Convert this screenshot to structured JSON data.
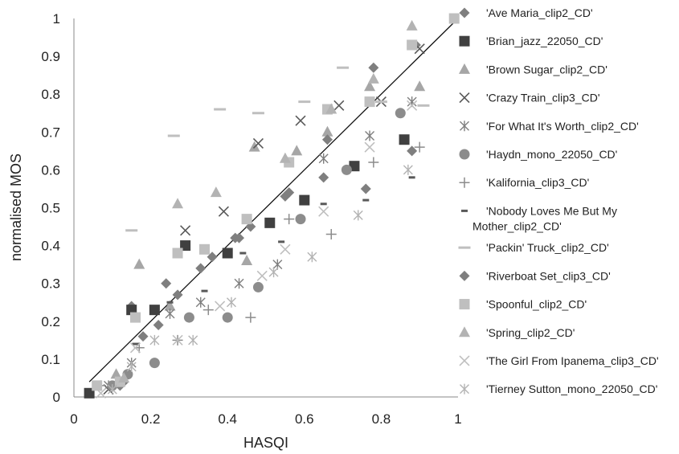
{
  "chart_data": {
    "type": "scatter",
    "xlabel": "HASQI",
    "ylabel": "normalised MOS",
    "xlim": [
      0,
      1
    ],
    "ylim": [
      0,
      1
    ],
    "x_ticks": [
      "0",
      "0.2",
      "0.4",
      "0.6",
      "0.8",
      "1"
    ],
    "y_ticks": [
      "0",
      "0.1",
      "0.2",
      "0.3",
      "0.4",
      "0.5",
      "0.6",
      "0.7",
      "0.8",
      "0.9",
      "1"
    ],
    "grid": false,
    "legend_position": "right",
    "regression_line": {
      "x": [
        0.04,
        1.0
      ],
      "y": [
        0.04,
        1.0
      ]
    },
    "series": [
      {
        "name": "'Ave Maria_clip2_CD'",
        "marker": "diamond",
        "color": "#7f7f7f",
        "points": [
          [
            0.15,
            0.24
          ],
          [
            0.22,
            0.19
          ],
          [
            0.36,
            0.37
          ],
          [
            0.42,
            0.42
          ],
          [
            0.55,
            0.53
          ],
          [
            0.65,
            0.58
          ],
          [
            0.76,
            0.55
          ],
          [
            0.88,
            0.65
          ],
          [
            0.89,
            0.93
          ],
          [
            0.12,
            0.03
          ]
        ]
      },
      {
        "name": "'Brian_jazz_22050_CD'",
        "marker": "square",
        "color": "#404040",
        "points": [
          [
            0.04,
            0.01
          ],
          [
            0.15,
            0.23
          ],
          [
            0.21,
            0.23
          ],
          [
            0.29,
            0.4
          ],
          [
            0.4,
            0.38
          ],
          [
            0.51,
            0.46
          ],
          [
            0.6,
            0.52
          ],
          [
            0.73,
            0.61
          ],
          [
            0.86,
            0.68
          ]
        ]
      },
      {
        "name": "'Brown Sugar_clip2_CD'",
        "marker": "triangle",
        "color": "#a6a6a6",
        "points": [
          [
            0.11,
            0.06
          ],
          [
            0.17,
            0.35
          ],
          [
            0.25,
            0.24
          ],
          [
            0.45,
            0.36
          ],
          [
            0.47,
            0.66
          ],
          [
            0.58,
            0.65
          ],
          [
            0.66,
            0.7
          ],
          [
            0.77,
            0.82
          ],
          [
            0.9,
            0.82
          ]
        ]
      },
      {
        "name": "'Crazy Train_clip3_CD'",
        "marker": "x",
        "color": "#595959",
        "points": [
          [
            0.29,
            0.44
          ],
          [
            0.39,
            0.49
          ],
          [
            0.48,
            0.67
          ],
          [
            0.59,
            0.73
          ],
          [
            0.69,
            0.77
          ],
          [
            0.8,
            0.78
          ],
          [
            0.9,
            0.92
          ],
          [
            0.09,
            0.02
          ]
        ]
      },
      {
        "name": "'For What It's Worth_clip2_CD'",
        "marker": "asterisk",
        "color": "#7f7f7f",
        "points": [
          [
            0.09,
            0.03
          ],
          [
            0.15,
            0.09
          ],
          [
            0.25,
            0.22
          ],
          [
            0.33,
            0.25
          ],
          [
            0.43,
            0.3
          ],
          [
            0.53,
            0.35
          ],
          [
            0.65,
            0.63
          ],
          [
            0.77,
            0.69
          ],
          [
            0.88,
            0.78
          ]
        ]
      },
      {
        "name": "'Haydn_mono_22050_CD'",
        "marker": "circle",
        "color": "#8c8c8c",
        "points": [
          [
            0.1,
            0.03
          ],
          [
            0.14,
            0.06
          ],
          [
            0.21,
            0.09
          ],
          [
            0.3,
            0.21
          ],
          [
            0.4,
            0.21
          ],
          [
            0.48,
            0.29
          ],
          [
            0.59,
            0.47
          ],
          [
            0.71,
            0.6
          ],
          [
            0.85,
            0.75
          ]
        ]
      },
      {
        "name": "'Kalifornia_clip3_CD'",
        "marker": "plus",
        "color": "#8c8c8c",
        "points": [
          [
            0.07,
            0.03
          ],
          [
            0.17,
            0.13
          ],
          [
            0.27,
            0.15
          ],
          [
            0.35,
            0.23
          ],
          [
            0.46,
            0.21
          ],
          [
            0.56,
            0.47
          ],
          [
            0.67,
            0.43
          ],
          [
            0.78,
            0.62
          ],
          [
            0.9,
            0.66
          ]
        ]
      },
      {
        "name": "'Nobody Loves Me But My Mother_clip2_CD'",
        "marker": "dash",
        "color": "#595959",
        "points": [
          [
            0.12,
            0.04
          ],
          [
            0.16,
            0.14
          ],
          [
            0.25,
            0.25
          ],
          [
            0.34,
            0.28
          ],
          [
            0.44,
            0.38
          ],
          [
            0.54,
            0.41
          ],
          [
            0.65,
            0.51
          ],
          [
            0.76,
            0.52
          ],
          [
            0.88,
            0.58
          ]
        ]
      },
      {
        "name": "'Packin' Truck_clip2_CD'",
        "marker": "longdash",
        "color": "#bfbfbf",
        "points": [
          [
            0.15,
            0.44
          ],
          [
            0.26,
            0.69
          ],
          [
            0.38,
            0.76
          ],
          [
            0.48,
            0.75
          ],
          [
            0.6,
            0.78
          ],
          [
            0.7,
            0.87
          ],
          [
            0.8,
            0.78
          ],
          [
            0.91,
            0.77
          ]
        ]
      },
      {
        "name": "'Riverboat Set_clip3_CD'",
        "marker": "diamond",
        "color": "#7f7f7f",
        "points": [
          [
            0.13,
            0.04
          ],
          [
            0.18,
            0.16
          ],
          [
            0.24,
            0.3
          ],
          [
            0.27,
            0.27
          ],
          [
            0.33,
            0.34
          ],
          [
            0.43,
            0.42
          ],
          [
            0.46,
            0.45
          ],
          [
            0.56,
            0.54
          ],
          [
            0.66,
            0.68
          ],
          [
            0.78,
            0.87
          ]
        ]
      },
      {
        "name": "'Spoonful_clip2_CD'",
        "marker": "square",
        "color": "#bfbfbf",
        "points": [
          [
            0.06,
            0.03
          ],
          [
            0.12,
            0.04
          ],
          [
            0.16,
            0.21
          ],
          [
            0.27,
            0.38
          ],
          [
            0.34,
            0.39
          ],
          [
            0.45,
            0.47
          ],
          [
            0.56,
            0.62
          ],
          [
            0.66,
            0.76
          ],
          [
            0.77,
            0.78
          ],
          [
            0.88,
            0.93
          ],
          [
            0.99,
            1.0
          ]
        ]
      },
      {
        "name": "'Spring_clip2_CD'",
        "marker": "triangle",
        "color": "#b3b3b3",
        "points": [
          [
            0.13,
            0.05
          ],
          [
            0.27,
            0.51
          ],
          [
            0.37,
            0.54
          ],
          [
            0.55,
            0.63
          ],
          [
            0.67,
            0.76
          ],
          [
            0.78,
            0.84
          ],
          [
            0.88,
            0.98
          ]
        ]
      },
      {
        "name": "'The Girl From Ipanema_clip3_CD'",
        "marker": "x",
        "color": "#bfbfbf",
        "points": [
          [
            0.07,
            0.01
          ],
          [
            0.16,
            0.13
          ],
          [
            0.27,
            0.15
          ],
          [
            0.38,
            0.24
          ],
          [
            0.49,
            0.32
          ],
          [
            0.55,
            0.39
          ],
          [
            0.65,
            0.49
          ],
          [
            0.77,
            0.66
          ],
          [
            0.88,
            0.77
          ]
        ]
      },
      {
        "name": "'Tierney Sutton_mono_22050_CD'",
        "marker": "asterisk",
        "color": "#b3b3b3",
        "points": [
          [
            0.1,
            0.02
          ],
          [
            0.15,
            0.08
          ],
          [
            0.21,
            0.15
          ],
          [
            0.31,
            0.15
          ],
          [
            0.41,
            0.25
          ],
          [
            0.52,
            0.33
          ],
          [
            0.62,
            0.37
          ],
          [
            0.74,
            0.48
          ],
          [
            0.87,
            0.6
          ]
        ]
      }
    ]
  }
}
